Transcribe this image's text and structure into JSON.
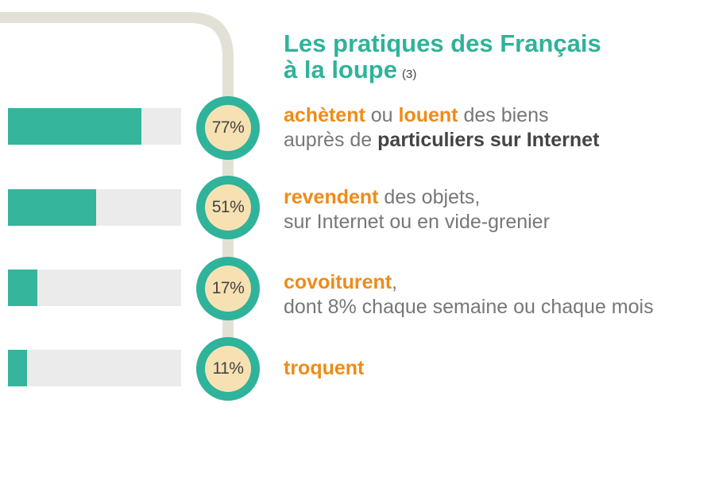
{
  "title": {
    "line1": "Les pratiques des Français",
    "line2": "à la loupe",
    "ref": "(3)"
  },
  "colors": {
    "accent": "#2fb39a",
    "bar_fill": "#35b59b",
    "bar_track": "#ebebeb",
    "highlight": "#ef8b17",
    "circle_center": "#f7e1b2",
    "line": "#e3e1d6"
  },
  "chart_data": {
    "type": "bar",
    "orientation": "horizontal",
    "categories": [
      "achètent ou louent",
      "revendent",
      "covoiturent",
      "troquent"
    ],
    "values": [
      77,
      51,
      17,
      11
    ],
    "unit": "%",
    "xlim": [
      0,
      100
    ],
    "labels": [
      "77%",
      "51%",
      "17%",
      "11%"
    ]
  },
  "rows": [
    {
      "pct": "77%",
      "l1a": "achètent",
      "l1b": " ou ",
      "l1c": "louent",
      "l1d": " des biens",
      "l2a": "auprès de ",
      "l2b": "particuliers sur Internet"
    },
    {
      "pct": "51%",
      "l1a": "revendent",
      "l1b": " des objets,",
      "l2a": "sur Internet ou en vide-grenier"
    },
    {
      "pct": "17%",
      "l1a": "covoiturent",
      "l1b": ",",
      "l2a": "dont 8% chaque semaine ou chaque mois"
    },
    {
      "pct": "11%",
      "l1a": "troquent"
    }
  ]
}
